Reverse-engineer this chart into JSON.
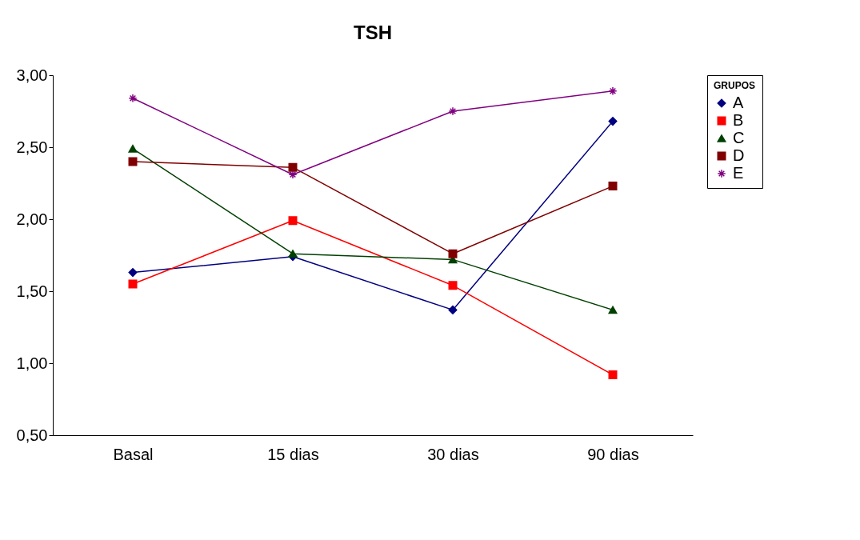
{
  "chart_data": {
    "type": "line",
    "title": "TSH",
    "legend_title": "GRUPOS",
    "categories": [
      "Basal",
      "15 dias",
      "30 dias",
      "90 dias"
    ],
    "ylim": [
      0.5,
      3.0
    ],
    "yticks": [
      {
        "value": 0.5,
        "label": "0,50"
      },
      {
        "value": 1.0,
        "label": "1,00"
      },
      {
        "value": 1.5,
        "label": "1,50"
      },
      {
        "value": 2.0,
        "label": "2,00"
      },
      {
        "value": 2.5,
        "label": "2,50"
      },
      {
        "value": 3.0,
        "label": "3,00"
      }
    ],
    "grid": false,
    "legend": "right",
    "line_style": "solid",
    "series": [
      {
        "name": "A",
        "color": "#000080",
        "marker": "diamond",
        "values": [
          1.63,
          1.74,
          1.37,
          2.68
        ]
      },
      {
        "name": "B",
        "color": "#ff0000",
        "marker": "square",
        "values": [
          1.55,
          1.99,
          1.54,
          0.92
        ]
      },
      {
        "name": "C",
        "color": "#004000",
        "marker": "triangle",
        "values": [
          2.49,
          1.76,
          1.72,
          1.37
        ]
      },
      {
        "name": "D",
        "color": "#800000",
        "marker": "square",
        "values": [
          2.4,
          2.36,
          1.76,
          2.23
        ]
      },
      {
        "name": "E",
        "color": "#800080",
        "marker": "cross",
        "values": [
          2.84,
          2.31,
          2.75,
          2.89
        ]
      }
    ]
  }
}
